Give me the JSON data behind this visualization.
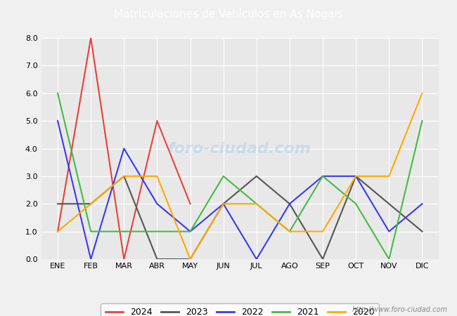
{
  "title": "Matriculaciones de Vehículos en As Nogais",
  "months": [
    "ENE",
    "FEB",
    "MAR",
    "ABR",
    "MAY",
    "JUN",
    "JUL",
    "AGO",
    "SEP",
    "OCT",
    "NOV",
    "DIC"
  ],
  "series": {
    "2024": {
      "color": "#e8413a",
      "data": [
        1,
        8,
        0,
        5,
        2,
        null,
        null,
        null,
        null,
        null,
        null,
        null
      ]
    },
    "2023": {
      "color": "#555555",
      "data": [
        2,
        2,
        3,
        0,
        0,
        2,
        3,
        2,
        0,
        3,
        2,
        1
      ]
    },
    "2022": {
      "color": "#3a3aee",
      "data": [
        5,
        0,
        4,
        2,
        1,
        2,
        0,
        2,
        3,
        3,
        1,
        2
      ]
    },
    "2021": {
      "color": "#44bb44",
      "data": [
        6,
        1,
        1,
        1,
        1,
        3,
        2,
        1,
        3,
        2,
        0,
        5
      ]
    },
    "2020": {
      "color": "#ffaa00",
      "data": [
        1,
        2,
        3,
        3,
        0,
        2,
        2,
        1,
        1,
        3,
        3,
        6
      ]
    }
  },
  "ylim": [
    0.0,
    8.0
  ],
  "yticks": [
    0.0,
    1.0,
    2.0,
    3.0,
    4.0,
    5.0,
    6.0,
    7.0,
    8.0
  ],
  "title_fontsize": 11,
  "tick_fontsize": 8,
  "fig_bg_color": "#f0f0f0",
  "plot_bg_color": "#e8e8e8",
  "title_bg_color": "#5b9bd5",
  "title_text_color": "#ffffff",
  "grid_color": "#ffffff",
  "watermark_plot": "foro-ciudad.com",
  "watermark_bottom": "http://www.foro-ciudad.com",
  "legend_years": [
    "2024",
    "2023",
    "2022",
    "2021",
    "2020"
  ]
}
